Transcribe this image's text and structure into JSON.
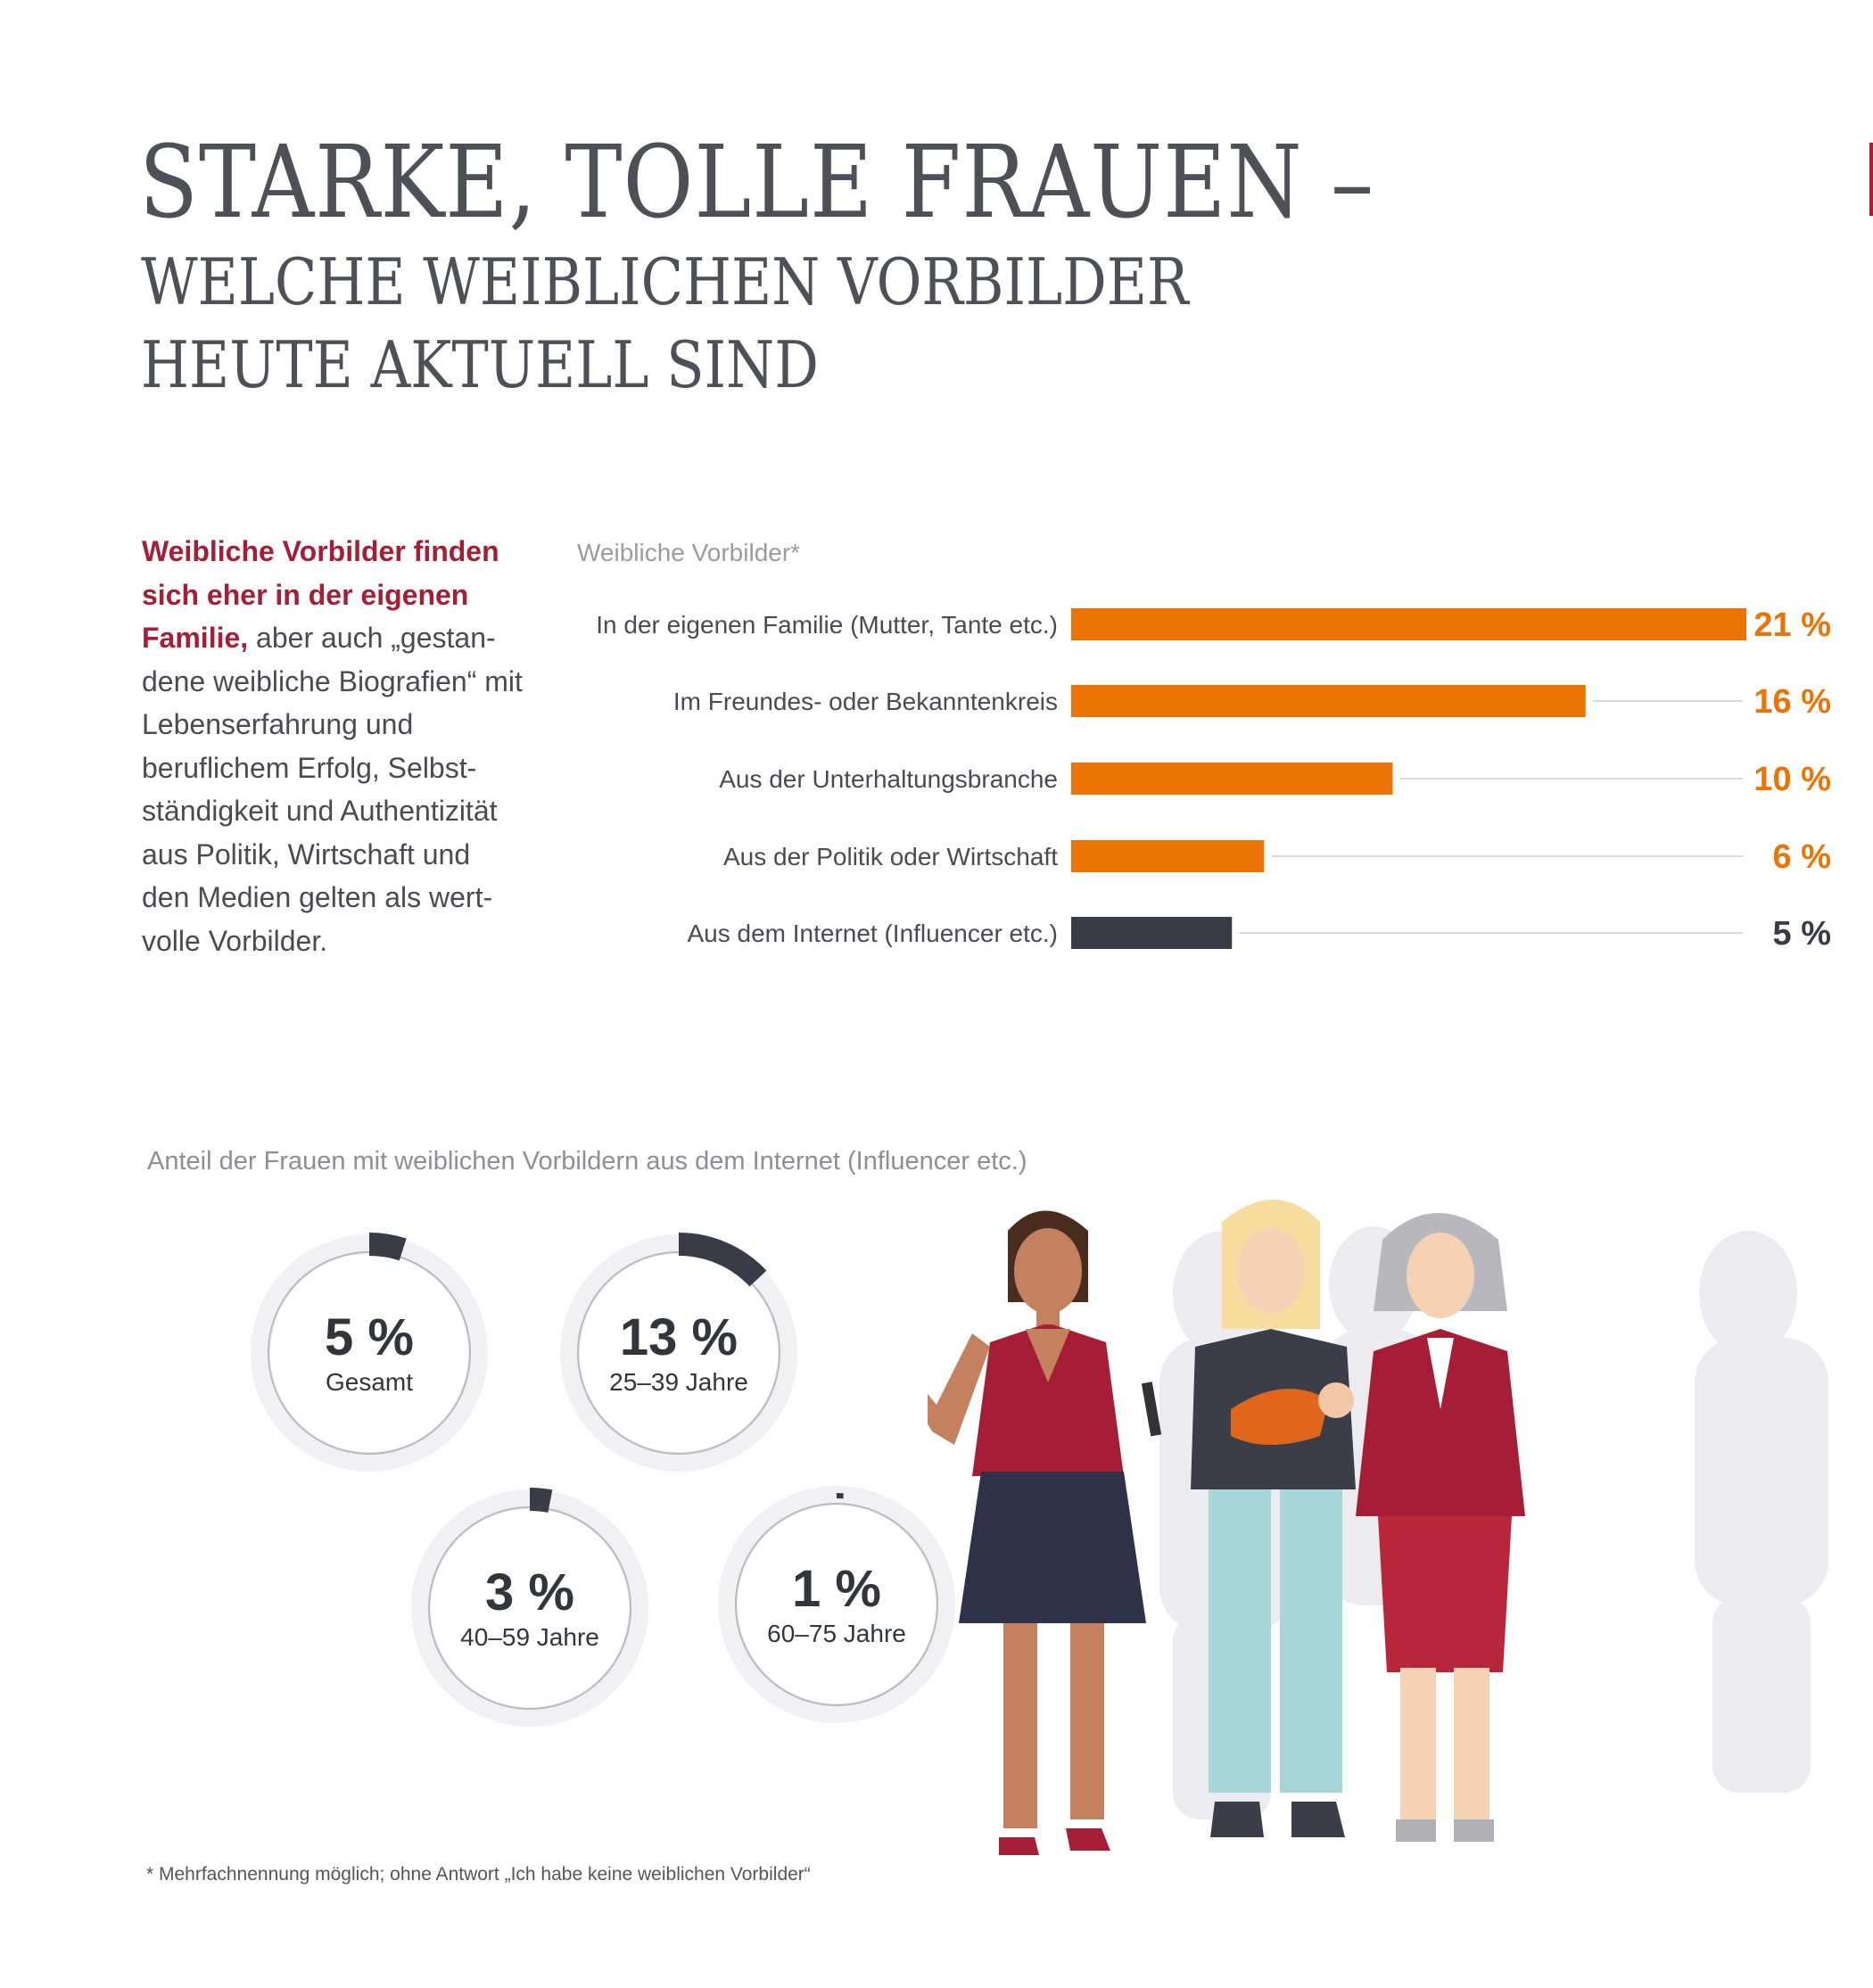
{
  "header": {
    "title": "STARKE, TOLLE FRAUEN –",
    "subtitle_line1": "WELCHE WEIBLICHEN VORBILDER",
    "subtitle_line2": "HEUTE AKTUELL SIND"
  },
  "intro": {
    "bold": "Weibliche Vorbilder finden sich eher in der eigenen Familie,",
    "text": " aber auch „gestan-dene weibliche Biografien“ mit Lebenserfahrung und beruflichem Erfolg, Selbst-ständigkeit und Authentizität aus Politik, Wirtschaft und den Medien gelten als wert-volle Vorbilder."
  },
  "colors": {
    "orange": "#ec7404",
    "dark": "#393c46",
    "track": "#d8d8dc",
    "accent": "#a51e36",
    "ring": "#f1f1f4"
  },
  "chart_data": [
    {
      "type": "bar",
      "title": "Weibliche Vorbilder*",
      "orientation": "horizontal",
      "categories": [
        "In der eigenen Familie (Mutter, Tante etc.)",
        "Im Freundes- oder Bekanntenkreis",
        "Aus der Unterhaltungsbranche",
        "Aus der Politik oder Wirtschaft",
        "Aus dem Internet (Influencer etc.)"
      ],
      "values": [
        21,
        16,
        10,
        6,
        5
      ],
      "labels": [
        "21 %",
        "16 %",
        "10 %",
        "6 %",
        "5 %"
      ],
      "highlight": [
        false,
        false,
        false,
        false,
        true
      ],
      "xlim": [
        0,
        21
      ],
      "unit": "%"
    },
    {
      "type": "pie",
      "title": "Anteil der Frauen mit weiblichen Vorbildern aus dem Internet (Influencer etc.)",
      "categories": [
        "Gesamt",
        "25–39 Jahre",
        "40–59 Jahre",
        "60–75 Jahre"
      ],
      "values": [
        5,
        13,
        3,
        1
      ],
      "labels": [
        "5 %",
        "13 %",
        "3 %",
        "1 %"
      ]
    }
  ],
  "footnote": "* Mehrfachnennung möglich; ohne Antwort „Ich habe keine weiblichen Vorbilder“"
}
